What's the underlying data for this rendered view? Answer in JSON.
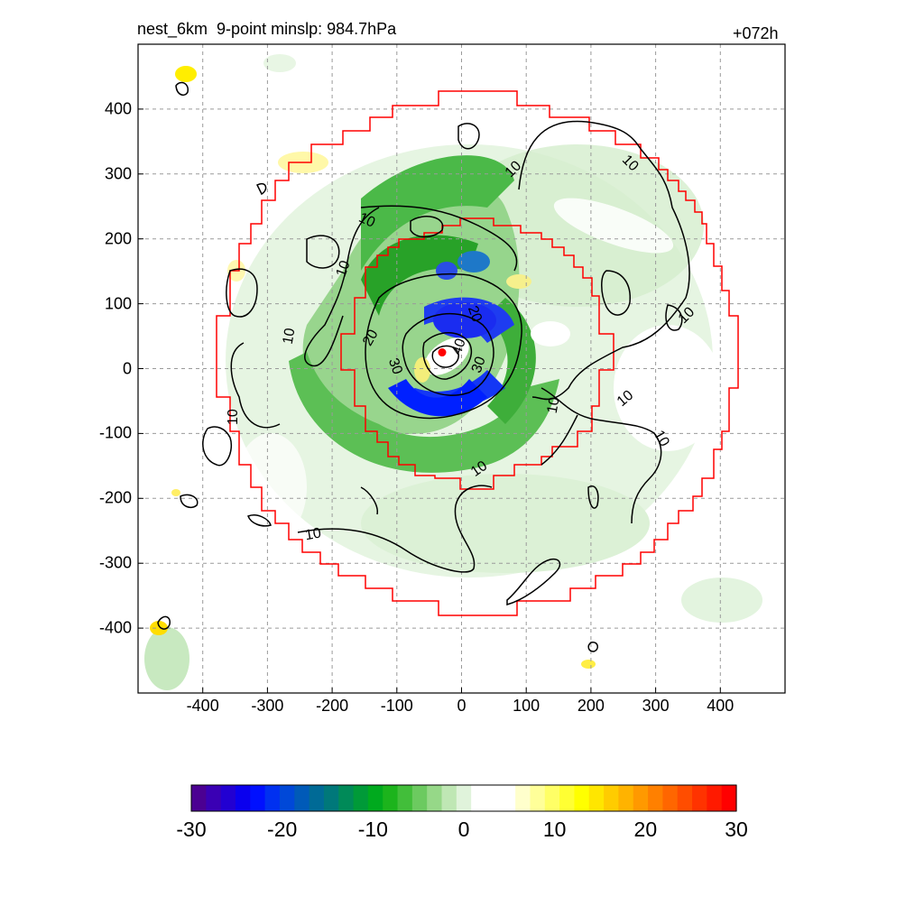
{
  "header": {
    "title": "nest_6km  9-point minslp: 984.7hPa",
    "forecast_hour": "+072h"
  },
  "chart_data": {
    "type": "heatmap",
    "title": "nest_6km  9-point minslp: 984.7hPa",
    "forecast_hour": "+072h",
    "xlim": [
      -500,
      500
    ],
    "ylim": [
      -500,
      500
    ],
    "x_ticks": [
      -400,
      -300,
      -200,
      -100,
      0,
      100,
      200,
      300,
      400
    ],
    "y_ticks": [
      400,
      300,
      200,
      100,
      0,
      -100,
      -200,
      -300,
      -400
    ],
    "x_tick_labels": [
      "-400",
      "-300",
      "-200",
      "-100",
      "0",
      "100",
      "200",
      "300",
      "400"
    ],
    "y_tick_labels": [
      "400",
      "300",
      "200",
      "100",
      "0",
      "-100",
      "-200",
      "-300",
      "-400"
    ],
    "grid": true,
    "center_marker": {
      "x": -30,
      "y": 25,
      "color": "#ff0000"
    },
    "contour_labels": [
      "10",
      "10",
      "10",
      "10",
      "10",
      "10",
      "10",
      "10",
      "10",
      "10",
      "10",
      "20",
      "20",
      "30",
      "30",
      "40"
    ],
    "colorbar": {
      "range": [
        -30,
        30
      ],
      "tick_labels": [
        "-30",
        "-20",
        "-10",
        "0",
        "10",
        "20",
        "30"
      ],
      "colors": [
        "#4b0092",
        "#3a00b4",
        "#2200d2",
        "#0a00ee",
        "#0010ff",
        "#0030f0",
        "#0048d8",
        "#005ab8",
        "#006a96",
        "#00787a",
        "#008a58",
        "#009a38",
        "#00aa1e",
        "#1cb41c",
        "#42be3a",
        "#6cca60",
        "#96d888",
        "#bfe7b4",
        "#e0f3db",
        "#ffffff",
        "#ffffff",
        "#ffffff",
        "#ffffcc",
        "#ffff99",
        "#ffff66",
        "#ffff33",
        "#ffff00",
        "#ffe600",
        "#ffcc00",
        "#ffb300",
        "#ff9900",
        "#ff8000",
        "#ff6600",
        "#ff4d00",
        "#ff3300",
        "#ff1a00",
        "#ff0000"
      ]
    }
  }
}
